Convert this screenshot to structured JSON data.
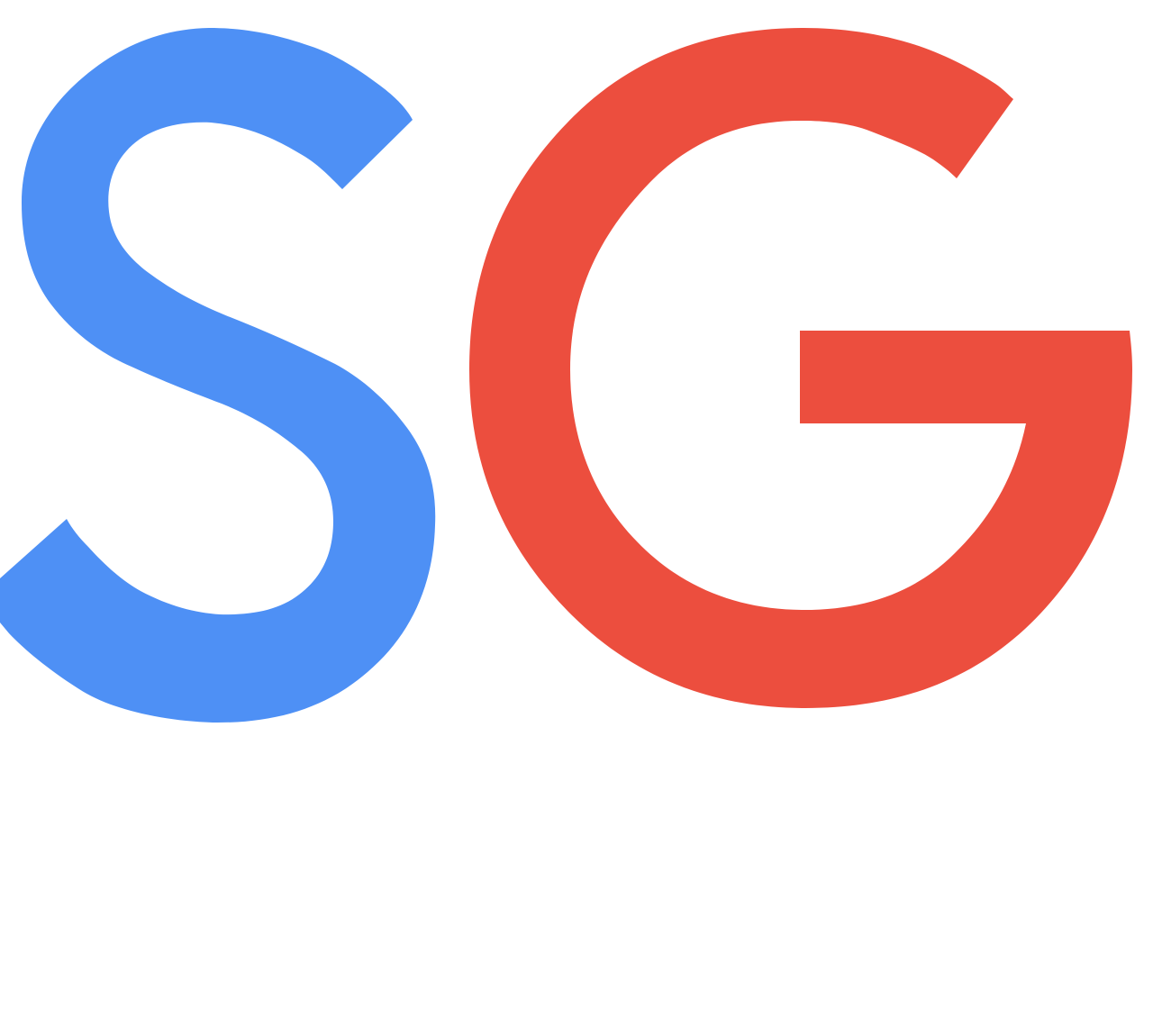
{
  "logo": {
    "letters": [
      {
        "char": "S",
        "color": "#4E90F5"
      },
      {
        "char": "G",
        "color": "#EC4E3E"
      }
    ]
  },
  "colors": {
    "background": "#FFFFFF",
    "s_blue": "#4E90F5",
    "g_red": "#EC4E3E"
  }
}
